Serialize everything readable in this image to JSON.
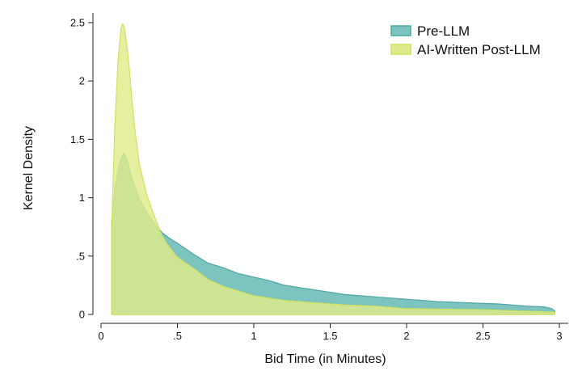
{
  "chart_data": {
    "type": "area",
    "title": "",
    "xlabel": "Bid Time (in Minutes)",
    "ylabel": "Kernel Density",
    "xlim": [
      0,
      3
    ],
    "ylim": [
      0,
      2.5
    ],
    "xticks": [
      {
        "value": 0,
        "label": "0"
      },
      {
        "value": 0.5,
        "label": ".5"
      },
      {
        "value": 1,
        "label": "1"
      },
      {
        "value": 1.5,
        "label": "1.5"
      },
      {
        "value": 2,
        "label": "2"
      },
      {
        "value": 2.5,
        "label": "2.5"
      },
      {
        "value": 3,
        "label": "3"
      }
    ],
    "yticks": [
      {
        "value": 0,
        "label": "0"
      },
      {
        "value": 0.5,
        "label": ".5"
      },
      {
        "value": 1,
        "label": "1"
      },
      {
        "value": 1.5,
        "label": "1.5"
      },
      {
        "value": 2,
        "label": "2"
      },
      {
        "value": 2.5,
        "label": "2.5"
      }
    ],
    "grid": false,
    "legend_position": "top-right",
    "series": [
      {
        "name": "Pre-LLM",
        "fill": "#7dc3c0",
        "stroke": "#4fa6a3",
        "x": [
          0.07,
          0.09,
          0.11,
          0.13,
          0.15,
          0.17,
          0.2,
          0.25,
          0.3,
          0.35,
          0.4,
          0.45,
          0.5,
          0.6,
          0.7,
          0.8,
          0.9,
          1.0,
          1.1,
          1.2,
          1.3,
          1.4,
          1.5,
          1.6,
          1.8,
          2.0,
          2.2,
          2.4,
          2.6,
          2.8,
          2.9,
          2.95,
          2.97
        ],
        "y": [
          0.8,
          1.07,
          1.22,
          1.33,
          1.38,
          1.33,
          1.17,
          0.99,
          0.87,
          0.78,
          0.7,
          0.65,
          0.61,
          0.52,
          0.44,
          0.4,
          0.35,
          0.32,
          0.29,
          0.25,
          0.23,
          0.21,
          0.19,
          0.17,
          0.15,
          0.13,
          0.11,
          0.1,
          0.09,
          0.07,
          0.065,
          0.05,
          0.03
        ]
      },
      {
        "name": "AI-Written Post-LLM",
        "fill": "#dfeb8a",
        "stroke": "#d2e15a",
        "x": [
          0.07,
          0.09,
          0.11,
          0.13,
          0.14,
          0.15,
          0.16,
          0.18,
          0.2,
          0.22,
          0.25,
          0.3,
          0.35,
          0.4,
          0.45,
          0.5,
          0.6,
          0.7,
          0.8,
          0.9,
          1.0,
          1.2,
          1.4,
          1.6,
          1.8,
          2.0,
          2.5,
          2.97
        ],
        "y": [
          0.75,
          1.6,
          2.15,
          2.45,
          2.49,
          2.47,
          2.4,
          2.18,
          1.87,
          1.6,
          1.29,
          1.02,
          0.84,
          0.67,
          0.57,
          0.49,
          0.4,
          0.3,
          0.24,
          0.2,
          0.16,
          0.12,
          0.1,
          0.08,
          0.07,
          0.05,
          0.04,
          0.02
        ]
      }
    ]
  }
}
